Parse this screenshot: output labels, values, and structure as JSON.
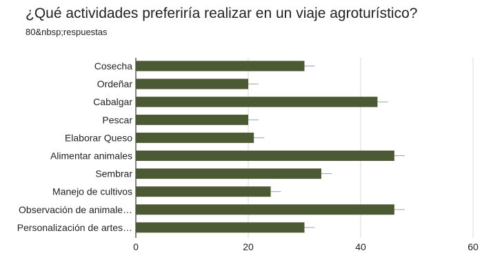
{
  "title": "¿Qué actividades preferiría realizar en un viaje agroturístico?",
  "subtitle": "80&nbsp;respuestas",
  "chart_data": {
    "type": "bar",
    "orientation": "horizontal",
    "title": "¿Qué actividades preferiría realizar en un viaje agroturístico?",
    "subtitle": "80&nbsp;respuestas",
    "categories": [
      "Cosecha",
      "Ordeñar",
      "Cabalgar",
      "Pescar",
      "Elaborar Queso",
      "Alimentar animales",
      "Sembrar",
      "Manejo de cultivos",
      "Observación de animale…",
      "Personalización de artes…"
    ],
    "values": [
      30,
      20,
      43,
      20,
      21,
      46,
      33,
      24,
      46,
      30
    ],
    "xlim": [
      0,
      60
    ],
    "xticks": [
      0,
      20,
      40,
      60
    ],
    "bar_color": "#4b5a32",
    "error_bar_color": "#9e9e9e",
    "grid": true
  }
}
